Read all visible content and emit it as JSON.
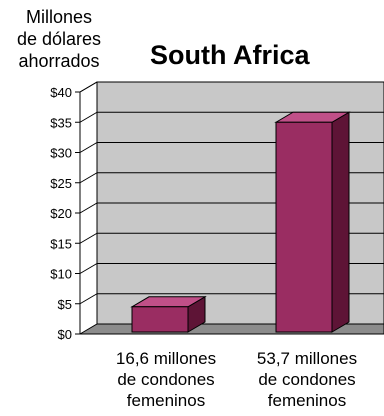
{
  "chart_data": {
    "type": "bar",
    "title": "South Africa",
    "ylabel_lines": [
      "Millones",
      "de dólares",
      "ahorrados"
    ],
    "categories": [
      [
        "16,6 millones",
        "de condones",
        "femeninos"
      ],
      [
        "53,7 millones",
        "de condones",
        "femeninos"
      ]
    ],
    "values": [
      4.5,
      35
    ],
    "ylim": [
      0,
      40
    ],
    "yticks": [
      "$0",
      "$5",
      "$10",
      "$15",
      "$20",
      "$25",
      "$30",
      "$35",
      "$40"
    ],
    "grid": true,
    "legend": "none",
    "colors": {
      "bar_front": "#9a2d62",
      "bar_top": "#c05088",
      "bar_side": "#5e1436",
      "wall": "#c8c8c8",
      "floor": "#8c8c8c",
      "grid": "#000000"
    }
  }
}
